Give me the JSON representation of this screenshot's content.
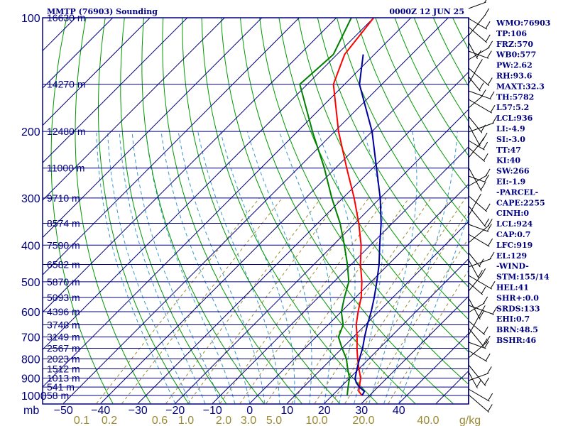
{
  "header": {
    "station": "MMTP (76903) Sounding",
    "time": "0000Z 12 JUN 25"
  },
  "axis_label_left": "mb",
  "chart_data": {
    "type": "line",
    "title": "MMTP (76903) Sounding",
    "xlabel": "",
    "ylabel": "mb",
    "temperature_ticks": [
      -50,
      -40,
      -30,
      -20,
      -10,
      0,
      10,
      20,
      30,
      40
    ],
    "temperature_tick_labels": [
      "−50",
      "−40",
      "−30",
      "−20",
      "−10",
      "0",
      "10",
      "20",
      "30",
      "40"
    ],
    "mixing_ratio_labels": [
      "0.1",
      "0.2",
      "0.6",
      "1.0",
      "2.0",
      "3.0",
      "5.0",
      "10.0",
      "20.0",
      "40.0"
    ],
    "mixing_ratio_unit": "g/kg",
    "pressure_ticks": [
      100,
      200,
      300,
      400,
      500,
      600,
      700,
      800,
      900,
      1000
    ],
    "pressure_range": [
      100,
      1050
    ],
    "height_levels": [
      {
        "p": 100,
        "label": "16630 m"
      },
      {
        "p": 150,
        "label": "14270 m"
      },
      {
        "p": 200,
        "label": "12480 m"
      },
      {
        "p": 250,
        "label": "11000 m"
      },
      {
        "p": 300,
        "label": "9710 m"
      },
      {
        "p": 350,
        "label": "8574 m"
      },
      {
        "p": 400,
        "label": "7590 m"
      },
      {
        "p": 450,
        "label": "6582 m"
      },
      {
        "p": 500,
        "label": "5870 m"
      },
      {
        "p": 550,
        "label": "5093 m"
      },
      {
        "p": 600,
        "label": "4396 m"
      },
      {
        "p": 650,
        "label": "3748 m"
      },
      {
        "p": 700,
        "label": "3149 m"
      },
      {
        "p": 750,
        "label": "2567 m"
      },
      {
        "p": 800,
        "label": "2023 m"
      },
      {
        "p": 850,
        "label": "1512 m"
      },
      {
        "p": 900,
        "label": "1013 m"
      },
      {
        "p": 950,
        "label": "541 m"
      },
      {
        "p": 1000,
        "label": "58 m"
      }
    ],
    "series": [
      {
        "color": "#ff0000",
        "points": [
          [
            1000,
            28
          ],
          [
            975,
            26
          ],
          [
            950,
            25
          ],
          [
            925,
            24
          ],
          [
            900,
            23
          ],
          [
            850,
            20
          ],
          [
            800,
            17
          ],
          [
            750,
            14
          ],
          [
            700,
            11
          ],
          [
            650,
            7.5
          ],
          [
            600,
            4.5
          ],
          [
            550,
            1.5
          ],
          [
            500,
            -2.5
          ],
          [
            450,
            -7.5
          ],
          [
            400,
            -12.5
          ],
          [
            350,
            -19
          ],
          [
            300,
            -27
          ],
          [
            250,
            -37
          ],
          [
            200,
            -49
          ],
          [
            150,
            -63
          ],
          [
            125,
            -68
          ],
          [
            100,
            -70
          ]
        ]
      },
      {
        "color": "#008000",
        "points": [
          [
            1000,
            24
          ],
          [
            975,
            23
          ],
          [
            950,
            22
          ],
          [
            925,
            21
          ],
          [
            900,
            20
          ],
          [
            850,
            17
          ],
          [
            800,
            14
          ],
          [
            750,
            10
          ],
          [
            700,
            6
          ],
          [
            650,
            4
          ],
          [
            600,
            0
          ],
          [
            550,
            -3
          ],
          [
            500,
            -6
          ],
          [
            450,
            -11
          ],
          [
            400,
            -17
          ],
          [
            350,
            -24
          ],
          [
            300,
            -33
          ],
          [
            250,
            -43
          ],
          [
            200,
            -56
          ],
          [
            150,
            -72
          ],
          [
            125,
            -71
          ],
          [
            100,
            -76
          ]
        ]
      },
      {
        "color": "#0000a0",
        "points": [
          [
            1000,
            28
          ],
          [
            975,
            27.5
          ],
          [
            950,
            25
          ],
          [
            925,
            23
          ],
          [
            900,
            21.5
          ],
          [
            850,
            19.5
          ],
          [
            800,
            17.5
          ],
          [
            750,
            15.5
          ],
          [
            700,
            13
          ],
          [
            650,
            10.5
          ],
          [
            600,
            8
          ],
          [
            550,
            5
          ],
          [
            500,
            1.5
          ],
          [
            450,
            -2.5
          ],
          [
            400,
            -7.5
          ],
          [
            350,
            -13
          ],
          [
            300,
            -20
          ],
          [
            250,
            -29
          ],
          [
            200,
            -40
          ],
          [
            150,
            -56
          ],
          [
            125,
            -63
          ]
        ]
      }
    ],
    "grid": true
  },
  "indices": [
    "WMO:76903",
    "TP:106",
    "FRZ:570",
    "WB0:577",
    "PW:2.62",
    "RH:93.6",
    "MAXT:32.3",
    "TH:5782",
    "L57:5.2",
    "LCL:936",
    "LI:-4.9",
    "SI:-3.0",
    "TT:47",
    "KI:40",
    "SW:266",
    "EI:-1.9",
    "-PARCEL-",
    "CAPE:2255",
    "CINH:0",
    "LCL:924",
    "CAP:0.7",
    "LFC:919",
    "EL:129",
    "-WIND-",
    "STM:155/14",
    "HEL:41",
    "SHR+:0.0",
    "SRDS:133",
    "EHI:0.7",
    "BRN:48.5",
    "BSHR:46"
  ],
  "colors": {
    "frame": "#000080",
    "isobar": "#000080",
    "isotherm": "#000080",
    "dry_adiabat": "#009900",
    "moist_adiabat": "#3399cc",
    "mixing_ratio": "#9a8a30",
    "barb": "#000000"
  }
}
